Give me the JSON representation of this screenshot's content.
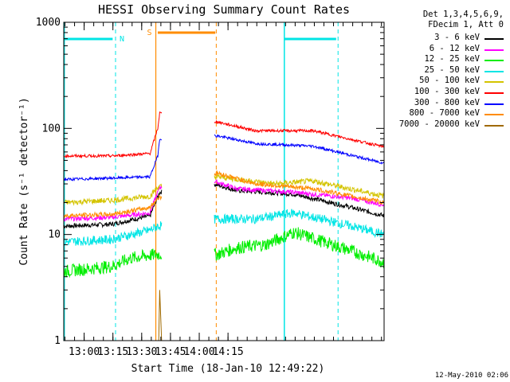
{
  "chart_data": {
    "type": "line",
    "title": "HESSI Observing Summary Count Rates",
    "xlabel": "Start Time (18-Jan-10 12:49:22)",
    "ylabel": "Count Rate (s⁻¹ detector⁻¹)",
    "yscale": "log",
    "ylim": [
      1,
      1000
    ],
    "xlim_minutes_after_start": [
      0,
      167
    ],
    "x_ticks": [
      "13:00",
      "13:15",
      "13:30",
      "13:45",
      "14:00",
      "14:15"
    ],
    "y_ticks": [
      "1",
      "10",
      "100",
      "1000"
    ],
    "grid": false,
    "legend_position": "top-right, outside plot",
    "detector_info": [
      "Det 1,3,4,5,6,9,",
      "FDecim 1, Att 0"
    ],
    "series": [
      {
        "name": "3 - 6 keV",
        "color": "#000000",
        "points": [
          [
            0,
            12
          ],
          [
            25,
            12.5
          ],
          [
            45,
            15
          ],
          [
            50,
            25
          ],
          [
            78,
            30
          ],
          [
            90,
            26
          ],
          [
            120,
            24
          ],
          [
            150,
            18
          ],
          [
            167,
            15
          ]
        ]
      },
      {
        "name": "6 - 12 keV",
        "color": "#ff00ff",
        "points": [
          [
            0,
            14
          ],
          [
            25,
            14.5
          ],
          [
            45,
            16
          ],
          [
            50,
            28
          ],
          [
            78,
            32
          ],
          [
            90,
            27
          ],
          [
            120,
            25
          ],
          [
            150,
            22
          ],
          [
            167,
            19
          ]
        ]
      },
      {
        "name": "12 - 25 keV",
        "color": "#00ee00",
        "points": [
          [
            0,
            4.5
          ],
          [
            25,
            5
          ],
          [
            35,
            6
          ],
          [
            49,
            6.5
          ],
          [
            80,
            6.5
          ],
          [
            90,
            7.5
          ],
          [
            105,
            8
          ],
          [
            120,
            10.5
          ],
          [
            150,
            7
          ],
          [
            167,
            5.5
          ]
        ]
      },
      {
        "name": "25 - 50 keV",
        "color": "#00e5e5",
        "points": [
          [
            0,
            8.5
          ],
          [
            25,
            9
          ],
          [
            45,
            11
          ],
          [
            49,
            12
          ],
          [
            80,
            14
          ],
          [
            100,
            14
          ],
          [
            120,
            16
          ],
          [
            150,
            12
          ],
          [
            167,
            10
          ]
        ]
      },
      {
        "name": "50 - 100 keV",
        "color": "#d4c400",
        "points": [
          [
            0,
            20
          ],
          [
            25,
            21
          ],
          [
            45,
            23
          ],
          [
            49,
            28
          ],
          [
            80,
            35
          ],
          [
            110,
            30
          ],
          [
            130,
            32
          ],
          [
            167,
            23
          ]
        ]
      },
      {
        "name": "100 - 300 keV",
        "color": "#ff0000",
        "points": [
          [
            0,
            55
          ],
          [
            25,
            55
          ],
          [
            45,
            58
          ],
          [
            49,
            100
          ],
          [
            50,
            140
          ],
          [
            80,
            115
          ],
          [
            100,
            95
          ],
          [
            130,
            95
          ],
          [
            167,
            67
          ]
        ]
      },
      {
        "name": "300 - 800 keV",
        "color": "#0000ff",
        "points": [
          [
            0,
            33
          ],
          [
            25,
            34
          ],
          [
            45,
            35
          ],
          [
            49,
            55
          ],
          [
            50,
            80
          ],
          [
            80,
            85
          ],
          [
            100,
            72
          ],
          [
            130,
            68
          ],
          [
            167,
            47
          ]
        ]
      },
      {
        "name": "800 - 7000 keV",
        "color": "#ff8c00",
        "points": [
          [
            0,
            15
          ],
          [
            25,
            15.5
          ],
          [
            45,
            18
          ],
          [
            49,
            22
          ],
          [
            80,
            38
          ],
          [
            100,
            30
          ],
          [
            130,
            27
          ],
          [
            167,
            20
          ]
        ]
      },
      {
        "name": "7000 - 20000 keV",
        "color": "#a06a00",
        "points": [
          [
            0,
            1
          ],
          [
            49.5,
            1
          ],
          [
            50,
            3
          ],
          [
            51,
            1
          ]
        ]
      }
    ],
    "annotations": [
      {
        "text": "N",
        "color": "#00e5e5",
        "x": 27
      },
      {
        "text": "S",
        "color": "#ff8c00",
        "x": 48
      }
    ],
    "footer": "12-May-2010 02:06"
  }
}
